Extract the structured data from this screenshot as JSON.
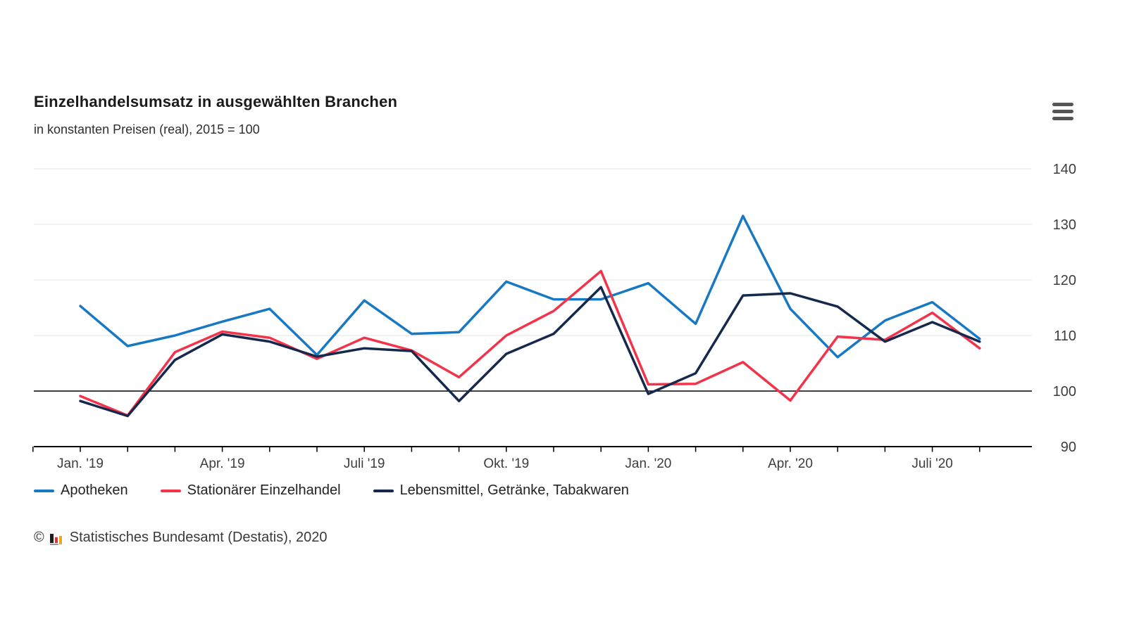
{
  "header": {
    "title": "Einzelhandelsumsatz in ausgewählten Branchen",
    "subtitle": "in konstanten Preisen (real), 2015 = 100"
  },
  "toolbar": {
    "context_menu_icon": "hamburger-icon"
  },
  "chart_data": {
    "type": "line",
    "title": "Einzelhandelsumsatz in ausgewählten Branchen",
    "subtitle": "in konstanten Preisen (real), 2015 = 100",
    "x": [
      "Jan. '19",
      "Feb. '19",
      "März '19",
      "Apr. '19",
      "Mai '19",
      "Juni '19",
      "Juli '19",
      "Aug. '19",
      "Sep. '19",
      "Okt. '19",
      "Nov. '19",
      "Dez. '19",
      "Jan. '20",
      "Feb. '20",
      "März '20",
      "Apr. '20",
      "Mai '20",
      "Juni '20",
      "Juli '20",
      "Aug. '20"
    ],
    "xticks": [
      {
        "i": 0,
        "label": "Jan. '19"
      },
      {
        "i": 3,
        "label": "Apr. '19"
      },
      {
        "i": 6,
        "label": "Juli '19"
      },
      {
        "i": 9,
        "label": "Okt. '19"
      },
      {
        "i": 12,
        "label": "Jan. '20"
      },
      {
        "i": 15,
        "label": "Apr. '20"
      },
      {
        "i": 18,
        "label": "Juli '20"
      }
    ],
    "yticks": [
      90,
      100,
      110,
      120,
      130,
      140
    ],
    "ylim": [
      90,
      142
    ],
    "baseline_value": 100,
    "grid": "horizontal-light",
    "legend_position": "bottom-left",
    "series": [
      {
        "name": "Apotheken",
        "color": "#1779c4",
        "values": [
          115.3,
          108.1,
          110.0,
          112.5,
          114.8,
          106.5,
          116.3,
          110.3,
          110.6,
          119.7,
          116.5,
          116.5,
          119.4,
          112.1,
          131.5,
          114.8,
          106.1,
          112.7,
          116.0,
          109.4
        ]
      },
      {
        "name": "Stationärer Einzelhandel",
        "color": "#f2334a",
        "values": [
          99.1,
          95.6,
          107.0,
          110.7,
          109.6,
          105.8,
          109.6,
          107.3,
          102.5,
          110.0,
          114.4,
          121.6,
          101.2,
          101.3,
          105.2,
          98.3,
          109.8,
          109.2,
          114.1,
          107.7
        ]
      },
      {
        "name": "Lebensmittel, Getränke, Tabakwaren",
        "color": "#16294d",
        "values": [
          98.2,
          95.5,
          105.6,
          110.2,
          108.9,
          106.2,
          107.7,
          107.2,
          98.2,
          106.7,
          110.3,
          118.7,
          99.5,
          103.2,
          117.2,
          117.6,
          115.2,
          108.9,
          112.4,
          108.9
        ]
      }
    ]
  },
  "footer": {
    "copyright_symbol": "©",
    "credit": "Statistisches Bundesamt (Destatis), 2020",
    "logo_colors": {
      "black": "#1d1d1d",
      "red": "#e03238",
      "gold": "#eaa921"
    }
  },
  "style_colors": {
    "gridline": "#e6e6e6",
    "axis": "#000000",
    "tick_label": "#3d3d3d"
  }
}
